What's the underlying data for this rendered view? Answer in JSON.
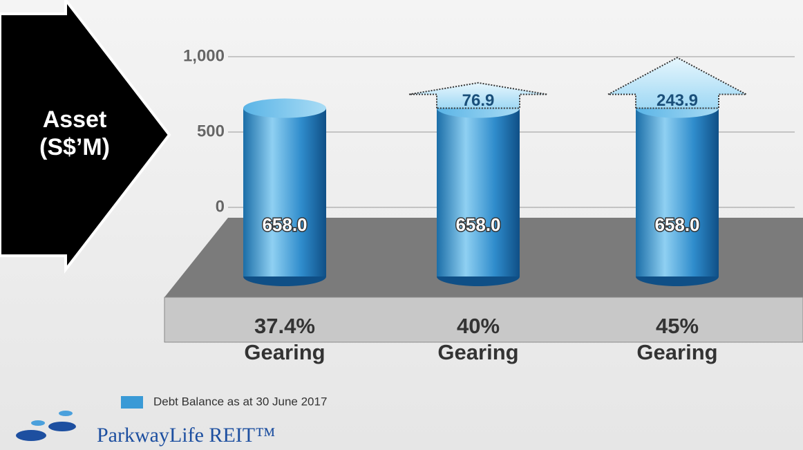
{
  "chart_data": {
    "type": "bar",
    "y_label": "Asset (S$’M)",
    "categories": [
      "37.4%\nGearing",
      "40%\nGearing",
      "45%\nGearing"
    ],
    "series": [
      {
        "name": "Debt Balance as at 30 June 2017",
        "color": "#3a9ad6",
        "values": [
          658.0,
          658.0,
          658.0
        ],
        "value_labels": [
          "658.0",
          "658.0",
          "658.0"
        ]
      }
    ],
    "additional_debt": {
      "color": "#bfe6fa",
      "values": [
        null,
        76.9,
        243.9
      ]
    },
    "ylim": [
      0,
      1000
    ],
    "yticks": [
      0,
      500,
      {
        "value": 1000,
        "label": "1,000"
      }
    ],
    "grid": true,
    "logo": "ParkwayLife REIT™"
  }
}
